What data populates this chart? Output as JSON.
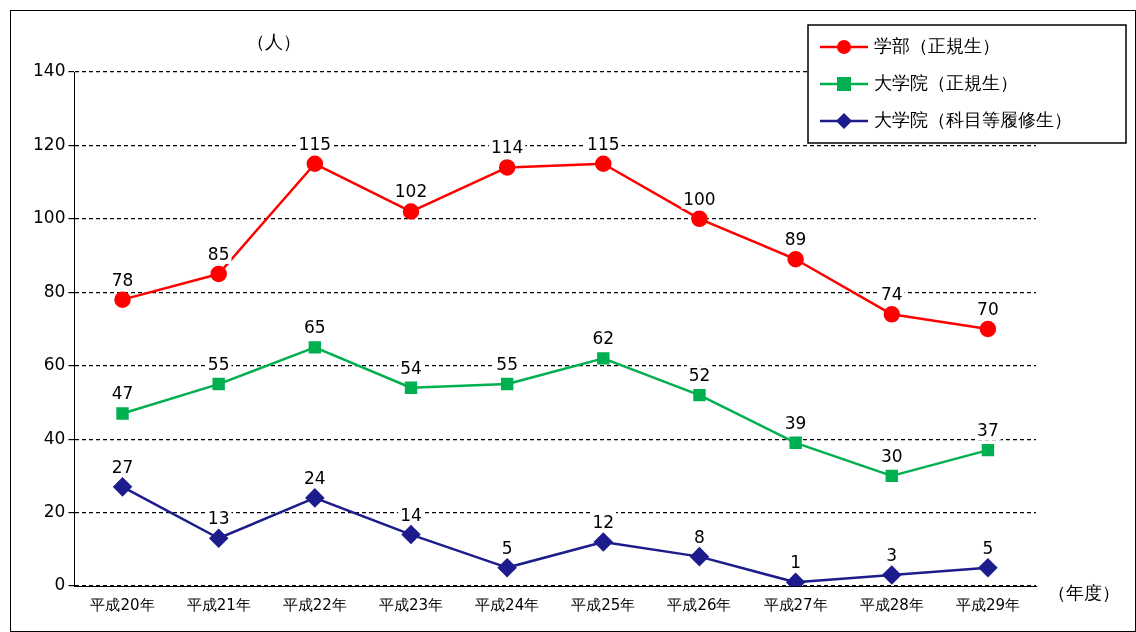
{
  "chart_data": {
    "type": "line",
    "ylabel": "（人）",
    "xlabel": "（年度）",
    "categories": [
      "平成20年",
      "平成21年",
      "平成22年",
      "平成23年",
      "平成24年",
      "平成25年",
      "平成26年",
      "平成27年",
      "平成28年",
      "平成29年"
    ],
    "series": [
      {
        "name": "学部（正規生）",
        "color": "#ff0000",
        "marker": "circle",
        "values": [
          78,
          85,
          115,
          102,
          114,
          115,
          100,
          89,
          74,
          70
        ]
      },
      {
        "name": "大学院（正規生）",
        "color": "#00b050",
        "marker": "square",
        "values": [
          47,
          55,
          65,
          54,
          55,
          62,
          52,
          39,
          30,
          37
        ]
      },
      {
        "name": "大学院（科目等履修生）",
        "color": "#1c1c8c",
        "marker": "diamond",
        "values": [
          27,
          13,
          24,
          14,
          5,
          12,
          8,
          1,
          3,
          5
        ]
      }
    ],
    "ylim": [
      0,
      140
    ],
    "yticks": [
      0,
      20,
      40,
      60,
      80,
      100,
      120,
      140
    ],
    "grid": "y",
    "legend": "top right",
    "data_labels": true,
    "line_style": "solid"
  }
}
